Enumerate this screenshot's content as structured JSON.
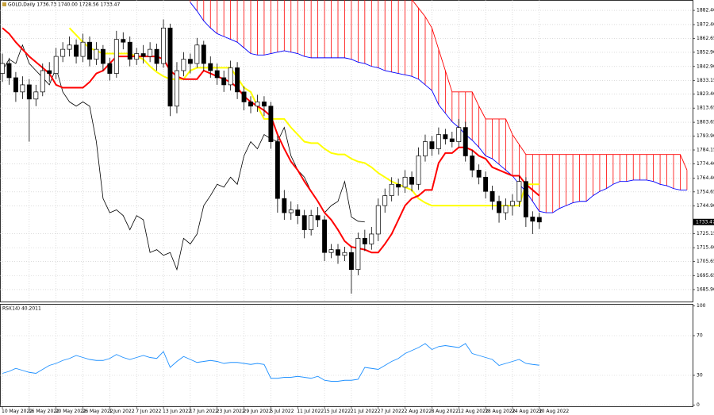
{
  "chart_data": [
    {
      "type": "candlestick",
      "header": "GOLD,Daily  1736.73 1740.00 1728.56 1733.47",
      "categories": [
        "10 May 2022",
        null,
        null,
        null,
        "16 May 2022",
        null,
        null,
        null,
        "20 May 2022",
        null,
        null,
        null,
        "26 May 2022",
        null,
        null,
        null,
        "1 Jun 2022",
        null,
        null,
        null,
        "7 Jun 2022",
        null,
        null,
        null,
        "13 Jun 2022",
        null,
        null,
        null,
        "17 Jun 2022",
        null,
        null,
        null,
        "23 Jun 2022",
        null,
        null,
        null,
        "29 Jun 2022",
        null,
        null,
        null,
        "5 Jul 2022",
        null,
        null,
        null,
        "11 Jul 2022",
        null,
        null,
        null,
        "15 Jul 2022",
        null,
        null,
        null,
        "21 Jul 2022",
        null,
        null,
        null,
        "27 Jul 2022",
        null,
        null,
        null,
        "2 Aug 2022",
        null,
        null,
        null,
        "8 Aug 2022",
        null,
        null,
        null,
        "12 Aug 2022",
        null,
        null,
        null,
        "18 Aug 2022",
        null,
        null,
        null,
        "24 Aug 2022",
        null,
        null,
        null,
        "30 Aug 2022",
        null,
        null,
        null,
        null,
        null,
        null,
        null,
        null,
        null,
        null,
        null,
        null,
        null,
        null,
        null,
        null,
        null,
        null,
        null,
        null,
        null,
        null
      ],
      "ohlc": [
        [
          1838,
          1852,
          1832,
          1845
        ],
        [
          1845,
          1849,
          1830,
          1835
        ],
        [
          1835,
          1839,
          1818,
          1825
        ],
        [
          1825,
          1836,
          1820,
          1830
        ],
        [
          1830,
          1834,
          1790,
          1820
        ],
        [
          1820,
          1830,
          1815,
          1825
        ],
        [
          1825,
          1845,
          1822,
          1840
        ],
        [
          1840,
          1846,
          1832,
          1838
        ],
        [
          1838,
          1856,
          1834,
          1850
        ],
        [
          1850,
          1860,
          1846,
          1855
        ],
        [
          1855,
          1864,
          1850,
          1858
        ],
        [
          1858,
          1862,
          1845,
          1850
        ],
        [
          1850,
          1866,
          1846,
          1860
        ],
        [
          1860,
          1864,
          1843,
          1848
        ],
        [
          1848,
          1860,
          1844,
          1855
        ],
        [
          1855,
          1858,
          1840,
          1845
        ],
        [
          1845,
          1849,
          1833,
          1838
        ],
        [
          1838,
          1868,
          1835,
          1862
        ],
        [
          1862,
          1867,
          1855,
          1860
        ],
        [
          1860,
          1864,
          1843,
          1848
        ],
        [
          1848,
          1856,
          1844,
          1852
        ],
        [
          1852,
          1858,
          1845,
          1850
        ],
        [
          1850,
          1860,
          1846,
          1855
        ],
        [
          1855,
          1859,
          1840,
          1845
        ],
        [
          1845,
          1876,
          1842,
          1870
        ],
        [
          1870,
          1873,
          1808,
          1815
        ],
        [
          1815,
          1846,
          1810,
          1840
        ],
        [
          1840,
          1853,
          1836,
          1848
        ],
        [
          1848,
          1852,
          1838,
          1845
        ],
        [
          1845,
          1863,
          1842,
          1858
        ],
        [
          1858,
          1861,
          1840,
          1845
        ],
        [
          1845,
          1850,
          1835,
          1840
        ],
        [
          1840,
          1845,
          1830,
          1835
        ],
        [
          1835,
          1840,
          1825,
          1830
        ],
        [
          1830,
          1847,
          1826,
          1842
        ],
        [
          1842,
          1846,
          1820,
          1825
        ],
        [
          1825,
          1829,
          1812,
          1818
        ],
        [
          1818,
          1822,
          1810,
          1815
        ],
        [
          1815,
          1823,
          1811,
          1818
        ],
        [
          1818,
          1822,
          1808,
          1815
        ],
        [
          1815,
          1818,
          1785,
          1790
        ],
        [
          1790,
          1794,
          1740,
          1750
        ],
        [
          1750,
          1756,
          1735,
          1740
        ],
        [
          1740,
          1748,
          1735,
          1742
        ],
        [
          1742,
          1746,
          1732,
          1738
        ],
        [
          1738,
          1742,
          1722,
          1728
        ],
        [
          1728,
          1742,
          1724,
          1738
        ],
        [
          1738,
          1744,
          1730,
          1735
        ],
        [
          1735,
          1738,
          1706,
          1712
        ],
        [
          1712,
          1718,
          1708,
          1714
        ],
        [
          1714,
          1718,
          1704,
          1710
        ],
        [
          1710,
          1716,
          1706,
          1712
        ],
        [
          1712,
          1716,
          1683,
          1700
        ],
        [
          1700,
          1726,
          1696,
          1722
        ],
        [
          1722,
          1728,
          1713,
          1718
        ],
        [
          1718,
          1730,
          1714,
          1725
        ],
        [
          1725,
          1750,
          1720,
          1745
        ],
        [
          1745,
          1757,
          1740,
          1752
        ],
        [
          1752,
          1765,
          1748,
          1760
        ],
        [
          1760,
          1764,
          1752,
          1758
        ],
        [
          1758,
          1770,
          1754,
          1765
        ],
        [
          1765,
          1769,
          1755,
          1760
        ],
        [
          1760,
          1786,
          1756,
          1780
        ],
        [
          1780,
          1795,
          1776,
          1790
        ],
        [
          1790,
          1794,
          1780,
          1785
        ],
        [
          1785,
          1800,
          1781,
          1795
        ],
        [
          1795,
          1799,
          1788,
          1792
        ],
        [
          1792,
          1797,
          1786,
          1790
        ],
        [
          1790,
          1806,
          1786,
          1800
        ],
        [
          1800,
          1804,
          1776,
          1780
        ],
        [
          1780,
          1784,
          1765,
          1770
        ],
        [
          1770,
          1774,
          1760,
          1765
        ],
        [
          1765,
          1769,
          1750,
          1755
        ],
        [
          1755,
          1759,
          1742,
          1748
        ],
        [
          1748,
          1752,
          1733,
          1740
        ],
        [
          1740,
          1750,
          1735,
          1745
        ],
        [
          1745,
          1753,
          1738,
          1748
        ],
        [
          1748,
          1766,
          1744,
          1762
        ],
        [
          1762,
          1765,
          1730,
          1737
        ],
        [
          1737,
          1741,
          1725,
          1734
        ],
        [
          1736.73,
          1740,
          1728.56,
          1733.47
        ]
      ],
      "up_color": "#ffffff",
      "down_color": "#000000",
      "wick_color": "#000000",
      "lines": [
        {
          "color": "#ff0000",
          "width": 2,
          "values": [
            1870,
            1866,
            1860,
            1855,
            1850,
            1846,
            1842,
            1838,
            1830,
            1828,
            1828,
            1828,
            1828,
            1832,
            1838,
            1840,
            1845,
            1850,
            1850,
            1850,
            1850,
            1850,
            1850,
            1850,
            1848,
            1840,
            1836,
            1834,
            1834,
            1834,
            1840,
            1838,
            1836,
            1834,
            1832,
            1828,
            1822,
            1818,
            1815,
            1812,
            1808,
            1795,
            1785,
            1776,
            1770,
            1762,
            1755,
            1748,
            1740,
            1735,
            1728,
            1720,
            1716,
            1715,
            1714,
            1712,
            1712,
            1718,
            1725,
            1735,
            1745,
            1750,
            1752,
            1756,
            1756,
            1775,
            1782,
            1782,
            1786,
            1786,
            1784,
            1780,
            1778,
            1772,
            1770,
            1768,
            1766,
            1766,
            1760,
            1756,
            1752
          ]
        },
        {
          "color": "#ffff00",
          "width": 2,
          "values": [
            null,
            null,
            null,
            null,
            null,
            null,
            null,
            null,
            null,
            null,
            1870,
            1865,
            1860,
            1856,
            1854,
            1852,
            1852,
            1852,
            1852,
            1852,
            1850,
            1848,
            1843,
            1839,
            1836,
            1834,
            1834,
            1834,
            1840,
            1842,
            1842,
            1842,
            1842,
            1842,
            1842,
            1835,
            1828,
            1825,
            1815,
            1806,
            1806,
            1806,
            1806,
            1800,
            1795,
            1790,
            1789,
            1789,
            1785,
            1782,
            1781,
            1781,
            1778,
            1776,
            1775,
            1772,
            1768,
            1765,
            1762,
            1760,
            1758,
            1756,
            1750,
            1747,
            1745,
            1745,
            1745,
            1745,
            1745,
            1745,
            1745,
            1745,
            1745,
            1745,
            1745,
            1745,
            1745,
            1745,
            1760,
            1760,
            1760
          ]
        },
        {
          "color": "#000000",
          "width": 0.8,
          "values": [
            1840,
            1848,
            1845,
            1858,
            1845,
            1840,
            1835,
            1830,
            1842,
            1825,
            1818,
            1815,
            1818,
            1815,
            1790,
            1750,
            1740,
            1742,
            1738,
            1728,
            1738,
            1735,
            1712,
            1714,
            1710,
            1712,
            1700,
            1722,
            1718,
            1725,
            1745,
            1752,
            1760,
            1758,
            1765,
            1760,
            1780,
            1790,
            1785,
            1795,
            1792,
            1790,
            1800,
            1780,
            1770,
            1765,
            1755,
            1748,
            1740,
            1745,
            1748,
            1762,
            1737,
            1734,
            1733.47
          ]
        }
      ],
      "cloud": {
        "span_a_color": "#ff0000",
        "span_b_color": "#0000ff",
        "span_a": [
          null,
          null,
          null,
          null,
          null,
          null,
          null,
          null,
          null,
          null,
          null,
          null,
          null,
          null,
          null,
          null,
          null,
          null,
          null,
          null,
          null,
          null,
          null,
          null,
          null,
          null,
          null,
          null,
          1900,
          1900,
          1900,
          1900,
          1900,
          1900,
          1900,
          1900,
          1900,
          1900,
          1900,
          1900,
          1900,
          1900,
          1900,
          1900,
          1900,
          1900,
          1900,
          1900,
          1900,
          1900,
          1900,
          1900,
          1900,
          1900,
          1900,
          1900,
          1900,
          1900,
          1900,
          1900,
          1895,
          1890,
          1884,
          1878,
          1870,
          1855,
          1840,
          1825,
          1825,
          1825,
          1825,
          1815,
          1806,
          1806,
          1806,
          1806,
          1795,
          1788,
          1781,
          1781,
          1781,
          1781,
          1781,
          1781,
          1781,
          1781,
          1781,
          1781,
          1781,
          1781,
          1781,
          1781,
          1781,
          1781,
          1781,
          1781,
          1781,
          1781,
          1781,
          1781,
          1781,
          1781,
          1770
        ],
        "span_b": [
          null,
          null,
          null,
          null,
          null,
          null,
          null,
          null,
          null,
          null,
          null,
          null,
          null,
          null,
          null,
          null,
          null,
          null,
          null,
          null,
          null,
          null,
          null,
          null,
          null,
          null,
          null,
          null,
          1888,
          1882,
          1875,
          1870,
          1866,
          1864,
          1862,
          1860,
          1856,
          1852,
          1851,
          1851,
          1852,
          1853,
          1854,
          1853,
          1852,
          1850,
          1849,
          1849,
          1849,
          1849,
          1849,
          1849,
          1848,
          1846,
          1845,
          1843,
          1842,
          1840,
          1839,
          1838,
          1837,
          1836,
          1834,
          1830,
          1826,
          1816,
          1810,
          1804,
          1800,
          1795,
          1791,
          1786,
          1780,
          1778,
          1774,
          1770,
          1766,
          1760,
          1755,
          1748,
          1741,
          1740,
          1740,
          1743,
          1745,
          1747,
          1748,
          1748,
          1752,
          1755,
          1757,
          1760,
          1762,
          1762,
          1763,
          1763,
          1763,
          1762,
          1760,
          1759,
          1757,
          1756,
          1756
        ]
      },
      "ylim": [
        1677.5,
        1889.7
      ],
      "yticks": [
        {
          "value": 1882.4,
          "label": "1882.40"
        },
        {
          "value": 1872.4,
          "label": "1872.40"
        },
        1862.65,
        {
          "value": 1852.9,
          "label": "1852.90"
        },
        {
          "value": 1842.9,
          "label": "1842.90"
        },
        1833.15,
        {
          "value": 1823.4,
          "label": "1823.40"
        },
        1813.65,
        1803.65,
        {
          "value": 1793.9,
          "label": "1793.90"
        },
        1784.15,
        {
          "value": 1774.4,
          "label": "1774.40"
        },
        {
          "value": 1764.4,
          "label": "1764.40"
        },
        1754.65,
        {
          "value": 1744.9,
          "label": "1744.90"
        },
        1725.15,
        {
          "value": 1715.4,
          "label": "1715.40"
        },
        1705.65,
        1695.65,
        {
          "value": 1685.9,
          "label": "1685.90"
        }
      ],
      "grid": true
    },
    {
      "type": "line",
      "title": "RSI(14) 40.2011",
      "color": "#1e90ff",
      "values": [
        32,
        34,
        37,
        35,
        33,
        32,
        36,
        40,
        42,
        45,
        47,
        50,
        48,
        46,
        45,
        45,
        47,
        51,
        48,
        46,
        48,
        50,
        48,
        47,
        54,
        38,
        44,
        49,
        46,
        43,
        44,
        45,
        44,
        42,
        43,
        43,
        42,
        41,
        42,
        41,
        27,
        27,
        28,
        28,
        29,
        28,
        27,
        29,
        25,
        24,
        24,
        25,
        25,
        26,
        38,
        37,
        36,
        40,
        44,
        47,
        52,
        55,
        58,
        62,
        56,
        59,
        60,
        59,
        58,
        62,
        52,
        50,
        48,
        46,
        40,
        42,
        44,
        46,
        42,
        41,
        40.2011
      ],
      "ylim": [
        0,
        100
      ],
      "yticks": [
        100,
        70,
        30,
        0
      ],
      "grid": true
    }
  ]
}
